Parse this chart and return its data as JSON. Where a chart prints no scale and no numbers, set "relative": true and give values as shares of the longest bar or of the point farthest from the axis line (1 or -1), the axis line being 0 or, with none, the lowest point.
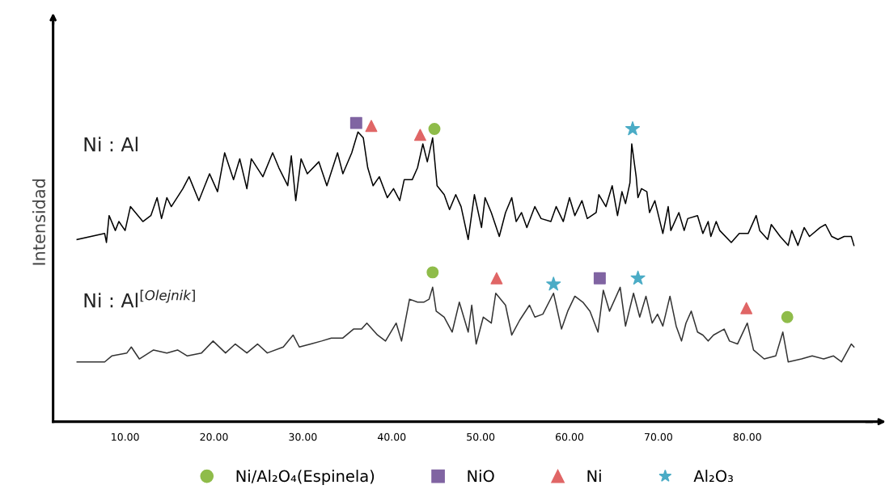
{
  "chart_data": {
    "type": "line",
    "relative": true,
    "ylabel": "Intensidad",
    "xlim": [
      1.9,
      94
    ],
    "xticks": [
      {
        "value": 10,
        "label": "10.00"
      },
      {
        "value": 20,
        "label": "20.00"
      },
      {
        "value": 30,
        "label": "30.00"
      },
      {
        "value": 40,
        "label": "40.00"
      },
      {
        "value": 50,
        "label": "50.00"
      },
      {
        "value": 60,
        "label": "60.00"
      },
      {
        "value": 70,
        "label": "70.00"
      },
      {
        "value": 80,
        "label": "80.00"
      }
    ],
    "tick_labels": "x",
    "grid": false,
    "legend": "bottom",
    "line_style": "solid",
    "series": [
      {
        "name": "Ni : Al",
        "marker": "none",
        "color": "#000000",
        "x": [
          4.6,
          7.7,
          7.9,
          8.2,
          8.9,
          9.3,
          10.0,
          10.6,
          12.0,
          12.9,
          13.6,
          14.1,
          14.7,
          15.2,
          16.5,
          17.2,
          18.3,
          19.5,
          20.4,
          21.2,
          22.2,
          22.9,
          23.7,
          24.2,
          25.5,
          26.6,
          27.3,
          28.3,
          28.7,
          29.2,
          29.8,
          30.5,
          31.8,
          32.7,
          33.9,
          34.5,
          35.5,
          36.2,
          36.8,
          37.3,
          37.9,
          38.6,
          39.5,
          40.2,
          40.9,
          41.4,
          42.3,
          42.9,
          43.5,
          44.0,
          44.6,
          45.1,
          45.9,
          46.5,
          47.2,
          47.8,
          48.6,
          49.3,
          50.1,
          50.5,
          51.2,
          52.1,
          52.8,
          53.5,
          54.0,
          54.6,
          55.2,
          56.1,
          56.8,
          57.9,
          58.5,
          59.3,
          60.0,
          60.6,
          61.4,
          62.0,
          63.0,
          63.3,
          64.1,
          64.8,
          65.4,
          65.9,
          66.3,
          66.8,
          67.0,
          67.5,
          67.7,
          68.1,
          68.7,
          69.0,
          69.6,
          70.5,
          71.1,
          71.4,
          72.3,
          72.9,
          73.3,
          74.4,
          75.0,
          75.6,
          75.9,
          76.5,
          76.9,
          78.2,
          79.1,
          80.1,
          81.0,
          81.4,
          82.3,
          82.7,
          83.7,
          84.6,
          85.0,
          85.7,
          86.4,
          87.0,
          88.2,
          88.8,
          89.5,
          90.2,
          90.9,
          91.7,
          92.0
        ],
        "values": [
          0.61,
          0.63,
          0.6,
          0.69,
          0.64,
          0.67,
          0.64,
          0.72,
          0.67,
          0.69,
          0.75,
          0.68,
          0.75,
          0.72,
          0.78,
          0.82,
          0.74,
          0.83,
          0.77,
          0.9,
          0.81,
          0.88,
          0.78,
          0.88,
          0.82,
          0.9,
          0.85,
          0.79,
          0.89,
          0.74,
          0.88,
          0.83,
          0.87,
          0.79,
          0.9,
          0.83,
          0.9,
          0.97,
          0.95,
          0.85,
          0.79,
          0.82,
          0.75,
          0.78,
          0.74,
          0.81,
          0.81,
          0.85,
          0.93,
          0.87,
          0.95,
          0.79,
          0.76,
          0.71,
          0.76,
          0.72,
          0.61,
          0.76,
          0.65,
          0.75,
          0.7,
          0.62,
          0.7,
          0.75,
          0.67,
          0.7,
          0.65,
          0.72,
          0.68,
          0.67,
          0.72,
          0.67,
          0.75,
          0.69,
          0.74,
          0.68,
          0.7,
          0.76,
          0.72,
          0.79,
          0.69,
          0.77,
          0.73,
          0.8,
          0.93,
          0.82,
          0.75,
          0.78,
          0.77,
          0.7,
          0.74,
          0.63,
          0.72,
          0.64,
          0.7,
          0.64,
          0.68,
          0.69,
          0.63,
          0.67,
          0.62,
          0.67,
          0.64,
          0.6,
          0.63,
          0.63,
          0.69,
          0.64,
          0.61,
          0.66,
          0.62,
          0.59,
          0.64,
          0.59,
          0.65,
          0.62,
          0.65,
          0.66,
          0.62,
          0.61,
          0.62,
          0.62,
          0.59
        ]
      },
      {
        "name": "Ni : Al$^{[Olejnik]}$",
        "marker": "none",
        "color": "#333333",
        "x": [
          4.6,
          6.2,
          7.7,
          8.5,
          10.2,
          10.7,
          11.6,
          13.2,
          14.7,
          15.9,
          17.0,
          18.6,
          19.9,
          21.3,
          22.4,
          23.7,
          24.9,
          26.0,
          27.8,
          28.9,
          29.6,
          30.9,
          32.1,
          33.2,
          34.5,
          35.7,
          36.6,
          37.2,
          38.4,
          39.3,
          40.5,
          41.1,
          42.0,
          42.9,
          43.6,
          44.2,
          44.6,
          45.0,
          45.9,
          46.8,
          47.6,
          48.6,
          49.0,
          49.5,
          50.3,
          51.2,
          51.7,
          52.8,
          53.5,
          54.4,
          55.5,
          56.1,
          57.0,
          58.2,
          59.1,
          59.8,
          60.6,
          61.5,
          62.3,
          63.2,
          63.8,
          64.5,
          65.7,
          66.3,
          67.2,
          67.9,
          68.6,
          69.3,
          69.9,
          70.5,
          71.3,
          72.0,
          72.6,
          73.1,
          73.7,
          74.4,
          75.0,
          75.6,
          76.2,
          77.4,
          78.0,
          78.9,
          80.0,
          80.7,
          81.9,
          83.2,
          84.0,
          84.6,
          86.1,
          87.3,
          88.6,
          89.7,
          90.6,
          91.7,
          92.0
        ],
        "values": [
          0.2,
          0.2,
          0.2,
          0.22,
          0.23,
          0.25,
          0.21,
          0.24,
          0.23,
          0.24,
          0.22,
          0.23,
          0.27,
          0.23,
          0.26,
          0.23,
          0.26,
          0.23,
          0.25,
          0.29,
          0.25,
          0.26,
          0.27,
          0.28,
          0.28,
          0.31,
          0.31,
          0.33,
          0.29,
          0.27,
          0.33,
          0.27,
          0.41,
          0.4,
          0.4,
          0.41,
          0.45,
          0.37,
          0.35,
          0.3,
          0.4,
          0.3,
          0.39,
          0.26,
          0.35,
          0.33,
          0.43,
          0.39,
          0.29,
          0.34,
          0.39,
          0.35,
          0.36,
          0.43,
          0.31,
          0.37,
          0.42,
          0.4,
          0.37,
          0.3,
          0.44,
          0.37,
          0.45,
          0.32,
          0.43,
          0.35,
          0.42,
          0.33,
          0.36,
          0.32,
          0.42,
          0.32,
          0.27,
          0.33,
          0.37,
          0.3,
          0.29,
          0.27,
          0.29,
          0.31,
          0.27,
          0.26,
          0.33,
          0.24,
          0.21,
          0.22,
          0.3,
          0.2,
          0.21,
          0.22,
          0.21,
          0.22,
          0.2,
          0.26,
          0.25
        ]
      },
      {
        "name": "Ni/Al₂O₄(Espinela)",
        "type": "scatter",
        "marker": "circle",
        "color": "#8fbc4a",
        "x": [
          44.8,
          44.6,
          84.5
        ],
        "values": [
          0.98,
          0.5,
          0.35
        ]
      },
      {
        "name": "NiO",
        "type": "scatter",
        "marker": "square",
        "color": "#8064a2",
        "x": [
          36.0,
          63.4
        ],
        "values": [
          1.0,
          0.48
        ]
      },
      {
        "name": "Ni",
        "type": "scatter",
        "marker": "triangle",
        "color": "#e06666",
        "x": [
          37.7,
          43.2,
          51.8,
          79.9
        ],
        "values": [
          0.99,
          0.96,
          0.48,
          0.38
        ]
      },
      {
        "name": "Al₂O₃",
        "type": "scatter",
        "marker": "star",
        "color": "#4bacc6",
        "x": [
          67.1,
          58.2,
          67.7
        ],
        "values": [
          0.98,
          0.46,
          0.48
        ]
      }
    ]
  }
}
